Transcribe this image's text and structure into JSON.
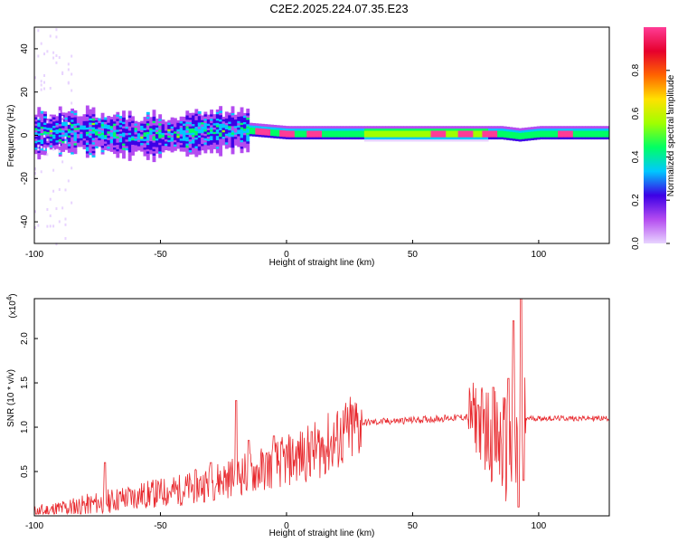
{
  "page": {
    "title": "C2E2.2025.224.07.35.E23"
  },
  "chart_data": [
    {
      "type": "heatmap",
      "xlabel": "Height of straight line (km)",
      "ylabel": "Frequency (Hz)",
      "xlim": [
        -100,
        128
      ],
      "ylim": [
        -50,
        50
      ],
      "xticks": [
        -100,
        -50,
        0,
        50,
        100
      ],
      "yticks": [
        -40,
        -20,
        0,
        20,
        40
      ],
      "colorbar": {
        "label": "Normalized spectral amplitude",
        "range": [
          0,
          1
        ],
        "ticks": [
          "0.0",
          "0.2",
          "0.4",
          "0.6",
          "0.8"
        ],
        "colors": [
          "#e8d4ff",
          "#b44cf0",
          "#3c00e6",
          "#00c8ff",
          "#00ff64",
          "#a0ff00",
          "#ffe100",
          "#ff6400",
          "#e6002d",
          "#ff3c96"
        ]
      },
      "band": {
        "center_hz": [
          [
            -100,
            1
          ],
          [
            -90,
            2
          ],
          [
            -80,
            2
          ],
          [
            -70,
            1
          ],
          [
            -60,
            0
          ],
          [
            -50,
            0
          ],
          [
            -40,
            1
          ],
          [
            -30,
            2
          ],
          [
            -20,
            3
          ],
          [
            -10,
            2
          ],
          [
            0,
            1
          ],
          [
            25,
            1
          ],
          [
            50,
            1
          ],
          [
            75,
            1
          ],
          [
            85,
            1
          ],
          [
            92,
            0
          ],
          [
            100,
            1
          ],
          [
            128,
            1
          ]
        ],
        "peak_amplitude_at": [
          -10,
          0,
          10,
          60,
          70,
          80,
          110
        ]
      }
    },
    {
      "type": "line",
      "xlabel": "Height of straight line (km)",
      "ylabel": "SNR (10 * v/v)",
      "multiplier": "(x10",
      "multiplier_exp": "4",
      "multiplier_close": ")",
      "xlim": [
        -100,
        128
      ],
      "ylim": [
        0,
        2.45
      ],
      "xticks": [
        -100,
        -50,
        0,
        50,
        100
      ],
      "yticks": [
        0.5,
        1.0,
        1.5,
        2.0
      ],
      "ytick_labels": [
        "0.5",
        "1.0",
        "1.5",
        "2.0"
      ],
      "color": "#e8282d",
      "trend": [
        [
          -100,
          0.03
        ],
        [
          -80,
          0.12
        ],
        [
          -60,
          0.22
        ],
        [
          -40,
          0.3
        ],
        [
          -20,
          0.45
        ],
        [
          -10,
          0.52
        ],
        [
          0,
          0.62
        ],
        [
          10,
          0.72
        ],
        [
          20,
          0.85
        ],
        [
          30,
          1.05
        ],
        [
          50,
          1.08
        ],
        [
          75,
          1.12
        ],
        [
          80,
          0.95
        ],
        [
          92,
          0.6
        ],
        [
          95,
          1.1
        ],
        [
          128,
          1.1
        ]
      ],
      "spikes": [
        [
          -72,
          0.6
        ],
        [
          -30,
          0.6
        ],
        [
          -20,
          1.3
        ],
        [
          -15,
          0.85
        ],
        [
          -5,
          0.9
        ],
        [
          10,
          0.95
        ],
        [
          76,
          1.25
        ],
        [
          82,
          1.45
        ],
        [
          88,
          1.55
        ],
        [
          90,
          2.2
        ],
        [
          92,
          0.1
        ],
        [
          93,
          2.45
        ],
        [
          94,
          0.4
        ]
      ]
    }
  ]
}
